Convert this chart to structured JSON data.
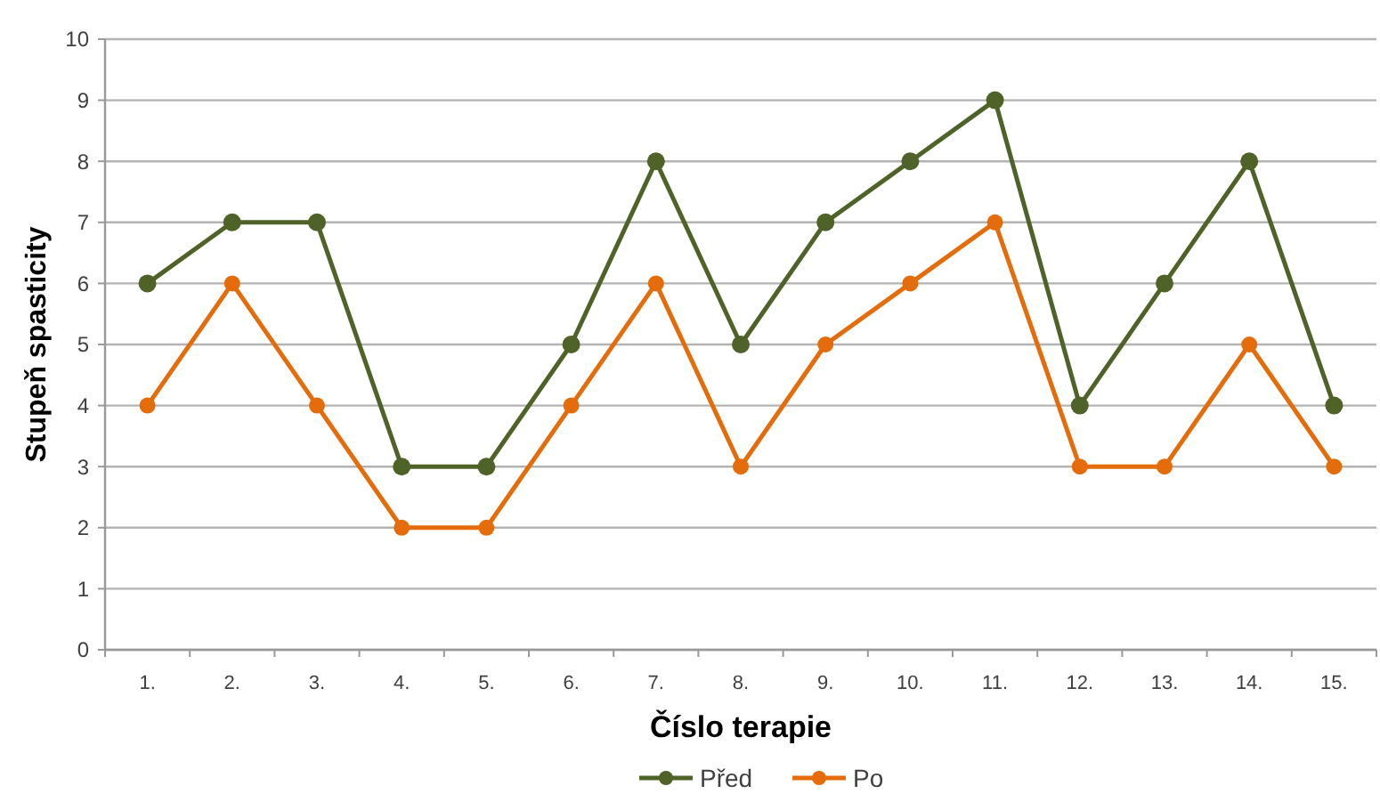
{
  "chart_data": {
    "type": "line",
    "xlabel": "Číslo terapie",
    "ylabel": "Stupeň spasticity",
    "categories": [
      "1.",
      "2.",
      "3.",
      "4.",
      "5.",
      "6.",
      "7.",
      "8.",
      "9.",
      "10.",
      "11.",
      "12.",
      "13.",
      "14.",
      "15."
    ],
    "series": [
      {
        "name": "Před",
        "color": "#4f6228",
        "values": [
          6,
          7,
          7,
          3,
          3,
          5,
          8,
          5,
          7,
          8,
          9,
          4,
          6,
          8,
          4
        ]
      },
      {
        "name": "Po",
        "color": "#e46c0a",
        "values": [
          4,
          6,
          4,
          2,
          2,
          4,
          6,
          3,
          5,
          6,
          7,
          3,
          3,
          5,
          3
        ]
      }
    ],
    "ylim": [
      0,
      10
    ],
    "yticks": [
      0,
      1,
      2,
      3,
      4,
      5,
      6,
      7,
      8,
      9,
      10
    ],
    "grid": "y",
    "legend": "bottom",
    "marker": "circle"
  }
}
